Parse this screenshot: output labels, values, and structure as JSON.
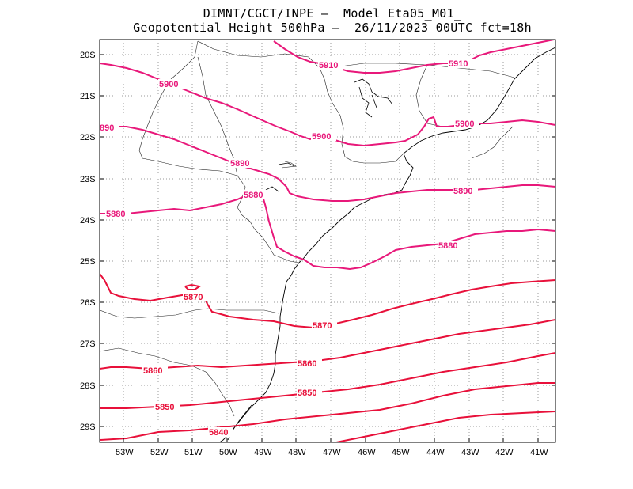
{
  "title": {
    "line1": "DIMNT/CGCT/INPE –  Model Eta05_M01_",
    "line2": "Geopotential Height 500hPa –  26/11/2023 00UTC fct=18h"
  },
  "axes": {
    "lat_labels": [
      "20S",
      "21S",
      "22S",
      "23S",
      "24S",
      "25S",
      "26S",
      "27S",
      "28S",
      "29S"
    ],
    "lon_labels": [
      "53W",
      "52W",
      "51W",
      "50W",
      "49W",
      "48W",
      "47W",
      "46W",
      "45W",
      "44W",
      "43W",
      "42W",
      "41W"
    ]
  },
  "contour_labels": [
    "5910",
    "5910",
    "5900",
    "5900",
    "5900",
    "890",
    "5890",
    "5890",
    "5880",
    "5880",
    "5880",
    "5870",
    "5870",
    "5860",
    "5860",
    "5850",
    "5850",
    "5840"
  ],
  "colors": {
    "high_contours": "#e8187a",
    "low_contours": "#e8103a",
    "coast": "#000000",
    "grid": "#999999"
  }
}
